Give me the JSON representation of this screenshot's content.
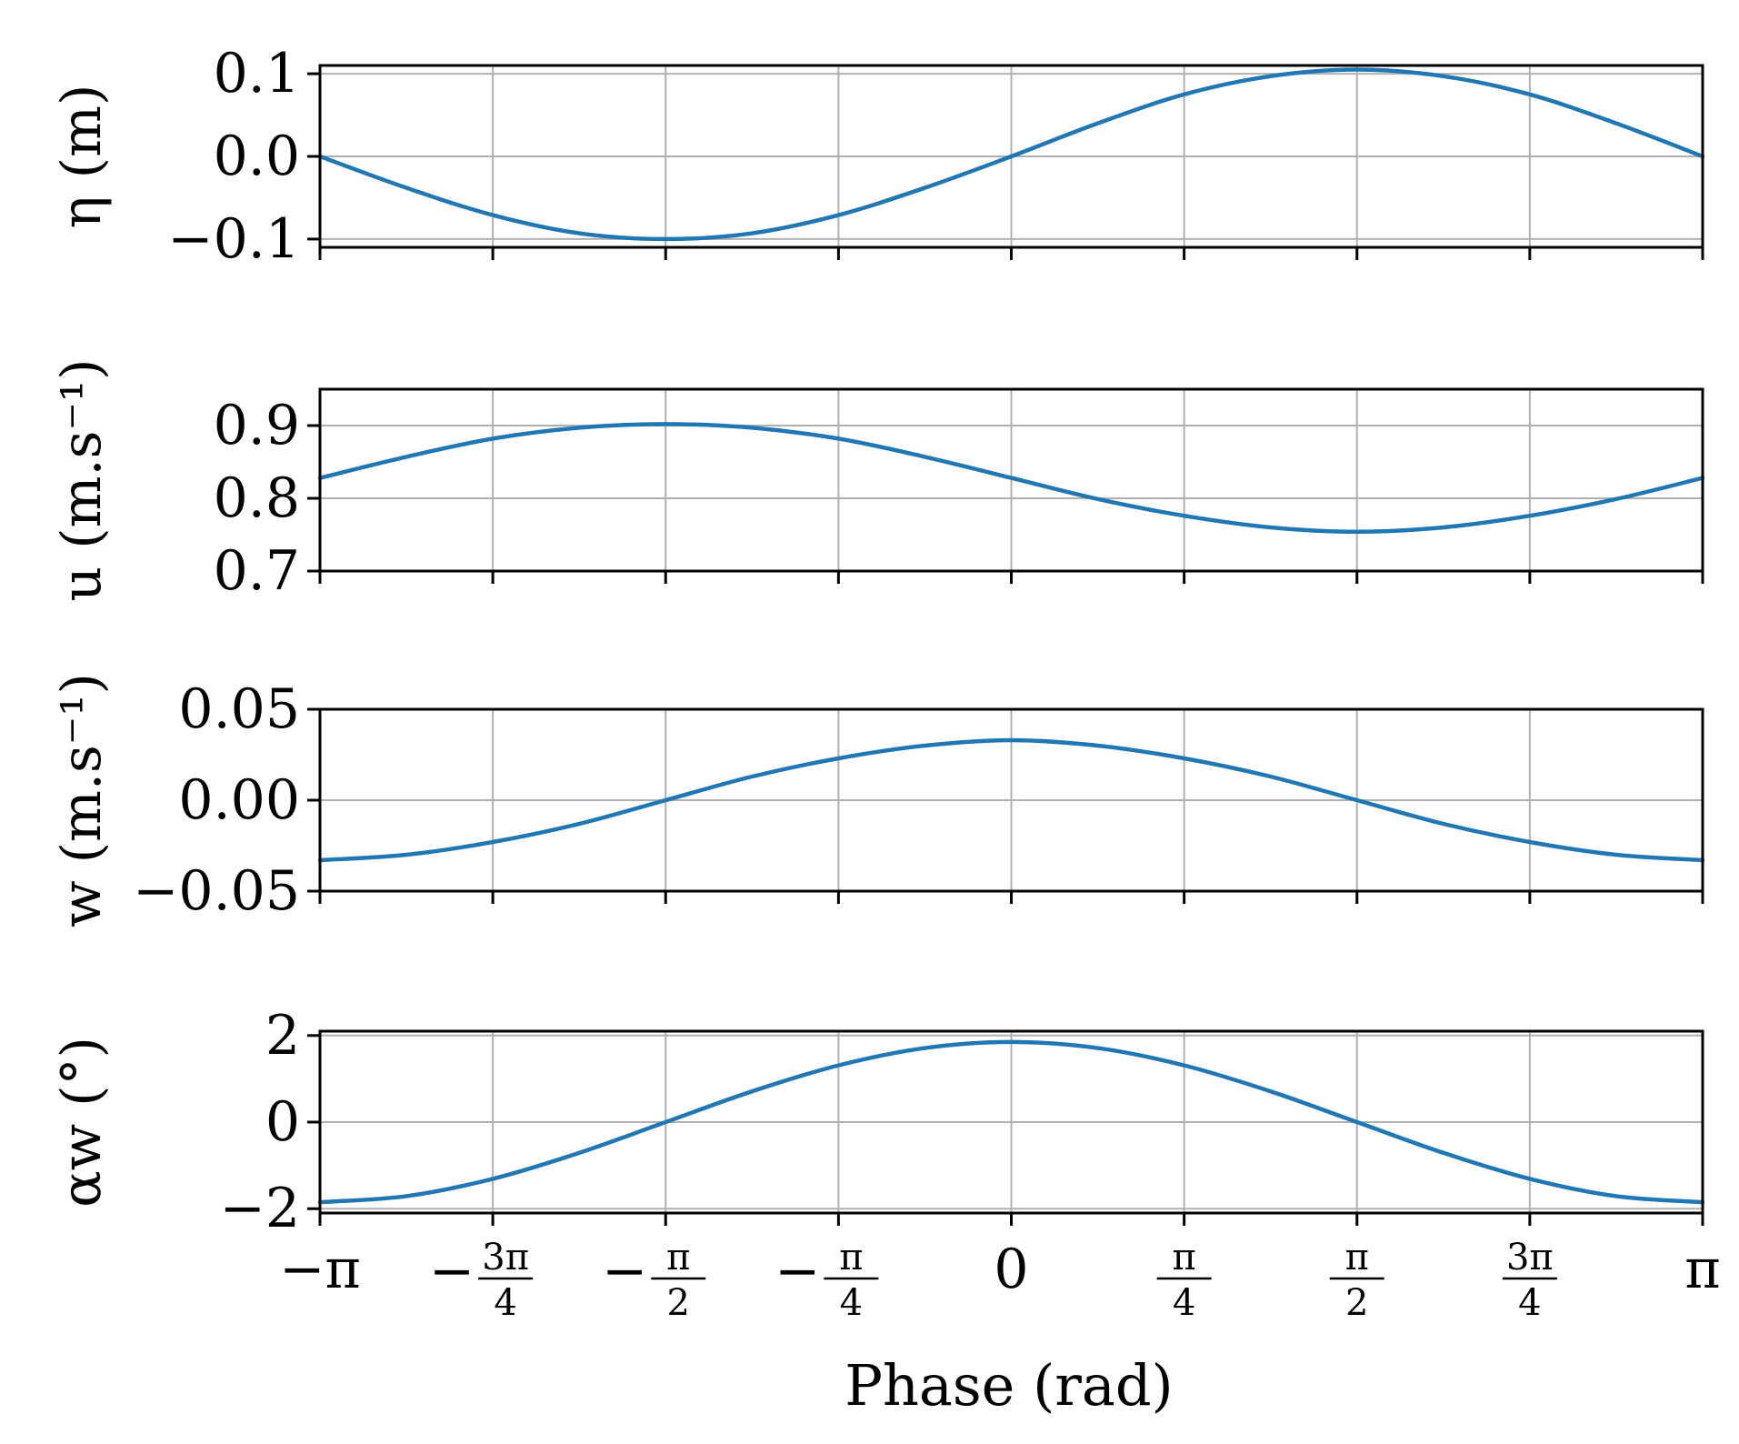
{
  "chart_data": {
    "type": "line",
    "colors": {
      "line": "#1f77b4",
      "grid": "#b0b0b0"
    },
    "grid": true,
    "xlabel": "Phase (rad)",
    "xlim": [
      -3.14159,
      3.14159
    ],
    "x_ticks": [
      {
        "value": -3.14159,
        "label": "−π",
        "kind": "plain"
      },
      {
        "value": -2.35619,
        "sign": "−",
        "num": "3π",
        "den": "4",
        "kind": "frac"
      },
      {
        "value": -1.5708,
        "sign": "−",
        "num": "π",
        "den": "2",
        "kind": "frac"
      },
      {
        "value": -0.7854,
        "sign": "−",
        "num": "π",
        "den": "4",
        "kind": "frac"
      },
      {
        "value": 0,
        "label": "0",
        "kind": "plain"
      },
      {
        "value": 0.7854,
        "sign": "",
        "num": "π",
        "den": "4",
        "kind": "frac"
      },
      {
        "value": 1.5708,
        "sign": "",
        "num": "π",
        "den": "2",
        "kind": "frac"
      },
      {
        "value": 2.35619,
        "sign": "",
        "num": "3π",
        "den": "4",
        "kind": "frac"
      },
      {
        "value": 3.14159,
        "label": "π",
        "kind": "plain"
      }
    ],
    "panels": [
      {
        "id": "eta",
        "ylabel": "η (m)",
        "ylim": [
          -0.11,
          0.11
        ],
        "y_ticks": [
          {
            "value": 0.1,
            "label": "0.1"
          },
          {
            "value": 0.0,
            "label": "0.0"
          },
          {
            "value": -0.1,
            "label": "−0.1"
          }
        ],
        "series": [
          {
            "x": [
              -3.1416,
              -2.7489,
              -2.3562,
              -1.9635,
              -1.5708,
              -1.1781,
              -0.7854,
              -0.3927,
              0,
              0.3927,
              0.7854,
              1.1781,
              1.5708,
              1.9635,
              2.3562,
              2.7489,
              3.1416
            ],
            "y": [
              0.0,
              -0.038,
              -0.071,
              -0.093,
              -0.1,
              -0.093,
              -0.071,
              -0.038,
              0.0,
              0.04,
              0.075,
              0.097,
              0.105,
              0.097,
              0.075,
              0.04,
              0.0
            ]
          }
        ]
      },
      {
        "id": "u",
        "ylabel": "u (m.s⁻¹)",
        "ylim": [
          0.7,
          0.95
        ],
        "y_ticks": [
          {
            "value": 0.9,
            "label": "0.9"
          },
          {
            "value": 0.8,
            "label": "0.8"
          },
          {
            "value": 0.7,
            "label": "0.7"
          }
        ],
        "series": [
          {
            "x": [
              -3.1416,
              -2.7489,
              -2.3562,
              -1.9635,
              -1.5708,
              -1.1781,
              -0.7854,
              -0.3927,
              0,
              0.3927,
              0.7854,
              1.1781,
              1.5708,
              1.9635,
              2.3562,
              2.7489,
              3.1416
            ],
            "y": [
              0.828,
              0.857,
              0.882,
              0.897,
              0.902,
              0.897,
              0.882,
              0.857,
              0.828,
              0.799,
              0.776,
              0.76,
              0.754,
              0.76,
              0.776,
              0.799,
              0.828
            ]
          }
        ]
      },
      {
        "id": "w",
        "ylabel": "w (m.s⁻¹)",
        "ylim": [
          -0.05,
          0.05
        ],
        "y_ticks": [
          {
            "value": 0.05,
            "label": "0.05"
          },
          {
            "value": 0.0,
            "label": "0.00"
          },
          {
            "value": -0.05,
            "label": "−0.05"
          }
        ],
        "series": [
          {
            "x": [
              -3.1416,
              -2.7489,
              -2.3562,
              -1.9635,
              -1.5708,
              -1.1781,
              -0.7854,
              -0.3927,
              0,
              0.3927,
              0.7854,
              1.1781,
              1.5708,
              1.9635,
              2.3562,
              2.7489,
              3.1416
            ],
            "y": [
              -0.033,
              -0.03,
              -0.023,
              -0.013,
              0.0,
              0.013,
              0.023,
              0.03,
              0.033,
              0.03,
              0.023,
              0.013,
              0.0,
              -0.013,
              -0.023,
              -0.03,
              -0.033
            ]
          }
        ]
      },
      {
        "id": "alpha",
        "ylabel": "αw (°)",
        "ylim": [
          -2.1,
          2.1
        ],
        "y_ticks": [
          {
            "value": 2,
            "label": "2"
          },
          {
            "value": 0,
            "label": "0"
          },
          {
            "value": -2,
            "label": "−2"
          }
        ],
        "series": [
          {
            "x": [
              -3.1416,
              -2.7489,
              -2.3562,
              -1.9635,
              -1.5708,
              -1.1781,
              -0.7854,
              -0.3927,
              0,
              0.3927,
              0.7854,
              1.1781,
              1.5708,
              1.9635,
              2.3562,
              2.7489,
              3.1416
            ],
            "y": [
              -1.85,
              -1.71,
              -1.31,
              -0.71,
              0.0,
              0.71,
              1.31,
              1.71,
              1.85,
              1.71,
              1.31,
              0.71,
              0.0,
              -0.71,
              -1.31,
              -1.71,
              -1.85
            ]
          }
        ]
      }
    ]
  }
}
